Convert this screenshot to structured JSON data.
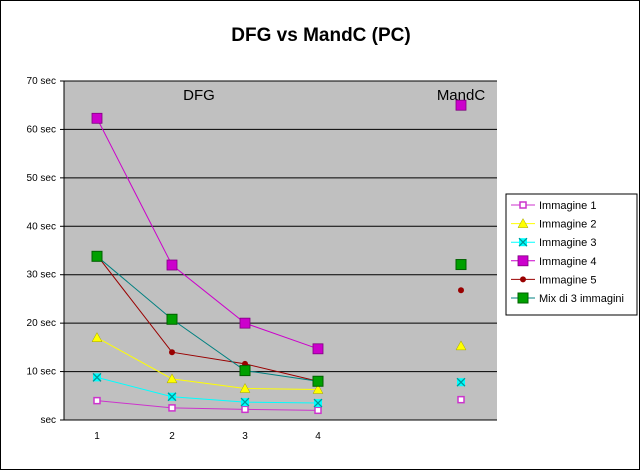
{
  "chart_data": {
    "type": "line",
    "title": "DFG vs MandC (PC)",
    "x": [
      "1",
      "2",
      "3",
      "4"
    ],
    "y_ticks": [
      "70 sec",
      "60 sec",
      "50 sec",
      "40 sec",
      "30 sec",
      "20 sec",
      "10 sec",
      "sec"
    ],
    "ylim": [
      0,
      70
    ],
    "grid": true,
    "plot_background": "#c0c0c0",
    "legend_position": "right",
    "annotations": {
      "dfg": "DFG",
      "mandc": "MandC"
    },
    "series": [
      {
        "name": "Immagine 1",
        "color": "#cc33cc",
        "marker": "square-open",
        "values": [
          4.0,
          2.5,
          2.2,
          2.0
        ],
        "mandc": 4.2
      },
      {
        "name": "Immagine 2",
        "color": "#ffff00",
        "marker": "triangle",
        "values": [
          17.0,
          8.5,
          6.5,
          6.3
        ],
        "mandc": 15.3
      },
      {
        "name": "Immagine 3",
        "color": "#00ffff",
        "marker": "x",
        "values": [
          8.8,
          4.8,
          3.7,
          3.5
        ],
        "mandc": 7.8
      },
      {
        "name": "Immagine 4",
        "color": "#cc00cc",
        "marker": "square",
        "values": [
          62.3,
          32.0,
          20.0,
          14.7
        ],
        "mandc": 65.0
      },
      {
        "name": "Immagine 5",
        "color": "#990000",
        "marker": "circle",
        "values": [
          34.0,
          14.0,
          11.6,
          8.0
        ],
        "mandc": 26.8
      },
      {
        "name": "Mix di 3 immagini",
        "color": "#008080",
        "marker": "square-green",
        "values": [
          33.8,
          20.8,
          10.2,
          8.0
        ],
        "mandc": 32.1
      }
    ]
  }
}
